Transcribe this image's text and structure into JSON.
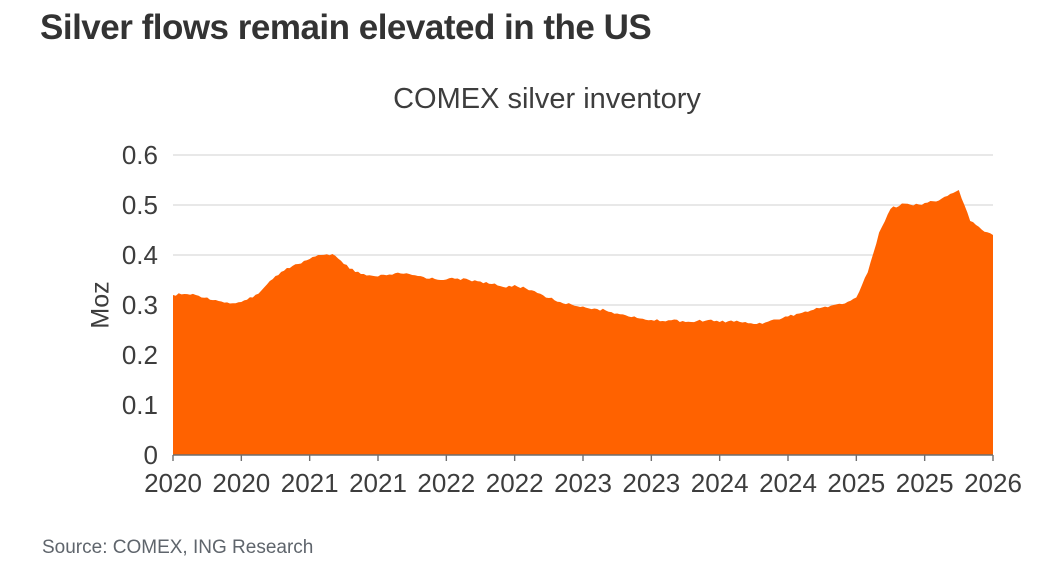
{
  "title": "Silver flows remain elevated in the US",
  "source": "Source: COMEX, ING Research",
  "chart": {
    "title": "COMEX silver inventory",
    "ylabel": "Moz"
  },
  "colors": {
    "area": "#FF6200",
    "gridline": "#d9d9d9",
    "axis": "#6e6e6e",
    "text": "#3d3d3d"
  },
  "chart_data": {
    "type": "area",
    "title": "COMEX silver inventory",
    "xlabel": "",
    "ylabel": "Moz",
    "series_name": "COMEX silver inventory",
    "x_resolution": "monthly, Jan 2020 to Jan 2026",
    "x_start_year": 2020,
    "points_per_year": 12,
    "values": [
      0.32,
      0.322,
      0.32,
      0.315,
      0.308,
      0.303,
      0.306,
      0.315,
      0.335,
      0.358,
      0.374,
      0.382,
      0.392,
      0.4,
      0.402,
      0.382,
      0.366,
      0.359,
      0.357,
      0.361,
      0.363,
      0.36,
      0.356,
      0.352,
      0.351,
      0.353,
      0.35,
      0.347,
      0.342,
      0.336,
      0.34,
      0.333,
      0.324,
      0.314,
      0.306,
      0.301,
      0.297,
      0.293,
      0.289,
      0.283,
      0.277,
      0.273,
      0.27,
      0.268,
      0.271,
      0.266,
      0.268,
      0.27,
      0.266,
      0.269,
      0.265,
      0.262,
      0.265,
      0.271,
      0.277,
      0.283,
      0.289,
      0.295,
      0.3,
      0.303,
      0.315,
      0.365,
      0.445,
      0.492,
      0.503,
      0.499,
      0.504,
      0.507,
      0.518,
      0.53,
      0.468,
      0.451,
      0.44
    ],
    "ylim": [
      0,
      0.6
    ],
    "yticks": [
      0,
      0.1,
      0.2,
      0.3,
      0.4,
      0.5,
      0.6
    ],
    "ytick_labels": [
      "0",
      "0.1",
      "0.2",
      "0.3",
      "0.4",
      "0.5",
      "0.6"
    ],
    "xtick_labels": [
      "2020",
      "2020",
      "2021",
      "2021",
      "2022",
      "2022",
      "2023",
      "2023",
      "2024",
      "2024",
      "2025",
      "2025",
      "2026"
    ],
    "grid": true,
    "legend": "none",
    "area_color": "#FF6200"
  }
}
